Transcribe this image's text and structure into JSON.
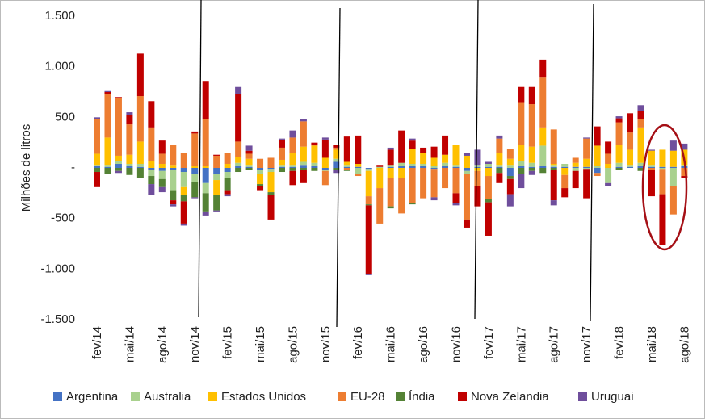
{
  "chart_data": {
    "type": "bar",
    "stacked": true,
    "y_label": "Milhões de litros",
    "categories": [
      "fev/14",
      null,
      null,
      "mai/14",
      null,
      null,
      "ago/14",
      null,
      null,
      "nov/14",
      null,
      null,
      "fev/15",
      null,
      null,
      "mai/15",
      null,
      null,
      "ago/15",
      null,
      null,
      "nov/15",
      null,
      null,
      "fev/16",
      null,
      null,
      "mai/16",
      null,
      null,
      "ago/16",
      null,
      null,
      "nov/16",
      null,
      null,
      "fev/17",
      null,
      null,
      "mai/17",
      null,
      null,
      "ago/17",
      null,
      null,
      "nov/17",
      null,
      null,
      "fev/18",
      null,
      null,
      "mai/18",
      null,
      null,
      "ago/18"
    ],
    "ylim": [
      -1500,
      1500
    ],
    "yticks": [
      {
        "value": -1500,
        "label": "-1.500"
      },
      {
        "value": -1000,
        "label": "-1.000"
      },
      -500,
      {
        "value": 0,
        "label": "-"
      },
      500,
      {
        "value": 1000,
        "label": "1.000"
      },
      {
        "value": 1500,
        "label": "1.500"
      }
    ],
    "legend": "bottom",
    "series": [
      {
        "name": "Argentina",
        "color": "#4472c4",
        "values": [
          20,
          10,
          40,
          20,
          10,
          -20,
          -30,
          -20,
          -40,
          -60,
          -150,
          -60,
          -40,
          20,
          10,
          -20,
          -10,
          10,
          10,
          30,
          20,
          -20,
          60,
          10,
          10,
          -10,
          0,
          10,
          20,
          20,
          20,
          -10,
          20,
          10,
          -30,
          10,
          10,
          10,
          -80,
          20,
          10,
          20,
          10,
          10,
          10,
          10,
          -50,
          0,
          10,
          10,
          20,
          10,
          10,
          10,
          20
        ]
      },
      {
        "name": "Australia",
        "color": "#a9d18e",
        "values": [
          10,
          20,
          30,
          20,
          30,
          -60,
          -80,
          -200,
          -150,
          -80,
          -100,
          -60,
          -60,
          30,
          20,
          -40,
          -30,
          20,
          20,
          30,
          30,
          -10,
          30,
          20,
          -60,
          -20,
          10,
          20,
          30,
          20,
          20,
          20,
          30,
          20,
          -30,
          20,
          30,
          20,
          30,
          50,
          40,
          200,
          20,
          30,
          -30,
          -10,
          20,
          -150,
          40,
          20,
          30,
          20,
          -10,
          -180,
          10
        ]
      },
      {
        "name": "Estados Unidos",
        "color": "#ffc000",
        "values": [
          110,
          270,
          50,
          90,
          220,
          70,
          40,
          30,
          -80,
          20,
          20,
          -150,
          40,
          60,
          60,
          -100,
          -200,
          50,
          120,
          150,
          170,
          100,
          90,
          30,
          30,
          -250,
          -200,
          -100,
          -100,
          150,
          110,
          80,
          80,
          200,
          120,
          -30,
          -80,
          120,
          60,
          160,
          160,
          180,
          10,
          -70,
          40,
          80,
          200,
          40,
          180,
          150,
          350,
          140,
          170,
          160,
          150
        ]
      },
      {
        "name": "EU-28",
        "color": "#ed7d31",
        "values": [
          340,
          430,
          570,
          300,
          450,
          330,
          100,
          200,
          150,
          320,
          460,
          120,
          110,
          150,
          50,
          90,
          100,
          120,
          150,
          250,
          10,
          -140,
          20,
          -20,
          -20,
          -80,
          -350,
          -280,
          -350,
          -350,
          -300,
          -280,
          -200,
          -250,
          -450,
          -150,
          -230,
          140,
          100,
          420,
          420,
          500,
          340,
          -130,
          50,
          200,
          -30,
          100,
          220,
          170,
          80,
          -20,
          -250,
          -280,
          -80
        ]
      },
      {
        "name": "Índia",
        "color": "#548235",
        "values": [
          -40,
          -60,
          -30,
          -70,
          -100,
          -80,
          -80,
          -100,
          -60,
          -150,
          -180,
          -150,
          -120,
          -40,
          -20,
          -20,
          -30,
          -40,
          -30,
          -20,
          -30,
          0,
          -20,
          -10,
          0,
          -10,
          0,
          -20,
          0,
          -10,
          0,
          0,
          0,
          0,
          0,
          0,
          -30,
          -50,
          -30,
          -60,
          -30,
          -50,
          -20,
          0,
          0,
          0,
          0,
          0,
          -20,
          0,
          -30,
          0,
          0,
          0,
          0
        ]
      },
      {
        "name": "Nova Zelandia",
        "color": "#c00000",
        "values": [
          -150,
          20,
          10,
          90,
          420,
          260,
          130,
          -40,
          -220,
          20,
          380,
          10,
          -40,
          470,
          30,
          -40,
          -240,
          80,
          -140,
          -130,
          20,
          180,
          30,
          250,
          280,
          -680,
          20,
          150,
          320,
          80,
          50,
          110,
          190,
          -100,
          -80,
          -200,
          -330,
          -100,
          -150,
          150,
          170,
          170,
          -300,
          -90,
          -170,
          -290,
          190,
          120,
          40,
          190,
          80,
          -260,
          -500,
          0,
          -20
        ]
      },
      {
        "name": "Uruguai",
        "color": "#6f4e9c",
        "values": [
          20,
          10,
          -20,
          30,
          0,
          -110,
          -50,
          -20,
          -20,
          -10,
          -40,
          -10,
          -20,
          70,
          50,
          0,
          0,
          10,
          70,
          20,
          0,
          20,
          -30,
          0,
          0,
          -10,
          0,
          20,
          0,
          20,
          0,
          -30,
          0,
          -20,
          30,
          150,
          20,
          30,
          -120,
          -140,
          -40,
          0,
          -50,
          0,
          0,
          10,
          0,
          -30,
          20,
          0,
          60,
          10,
          0,
          100,
          60
        ]
      }
    ]
  }
}
